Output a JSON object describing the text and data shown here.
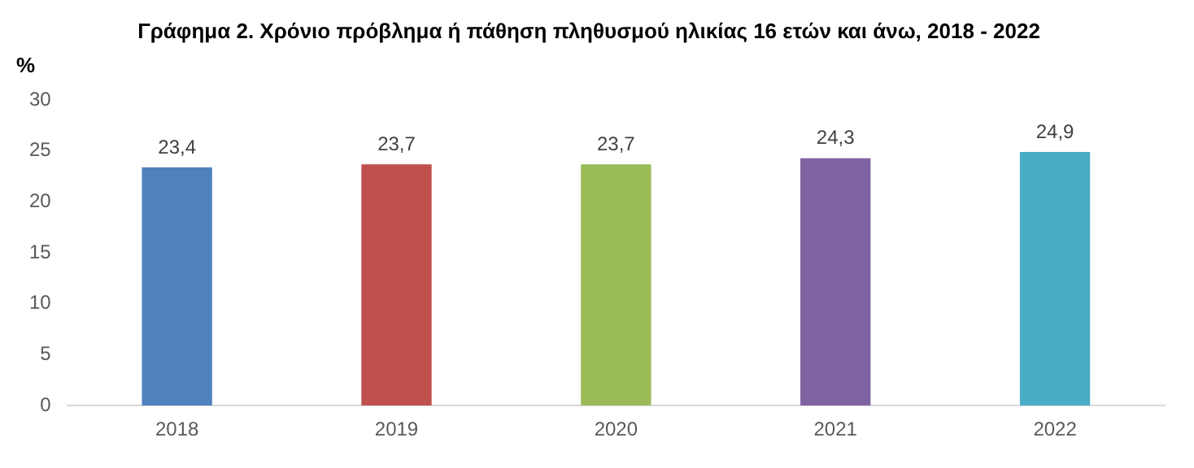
{
  "chart_data": {
    "type": "bar",
    "title": "Γράφημα 2. Χρόνιο πρόβλημα ή πάθηση πληθυσμού ηλικίας 16 ετών και άνω, 2018 - 2022",
    "ylabel": "%",
    "categories": [
      "2018",
      "2019",
      "2020",
      "2021",
      "2022"
    ],
    "values": [
      23.4,
      23.7,
      23.7,
      24.3,
      24.9
    ],
    "colors": [
      "#4f81bd",
      "#c0504d",
      "#9bbb59",
      "#8064a2",
      "#4bacc6"
    ],
    "value_labels": [
      "23,4",
      "23,7",
      "23,7",
      "24,3",
      "24,9"
    ],
    "ylim": [
      0,
      30
    ],
    "yticks": [
      0,
      5,
      10,
      15,
      20,
      25,
      30
    ],
    "grid": false,
    "legend": false
  }
}
